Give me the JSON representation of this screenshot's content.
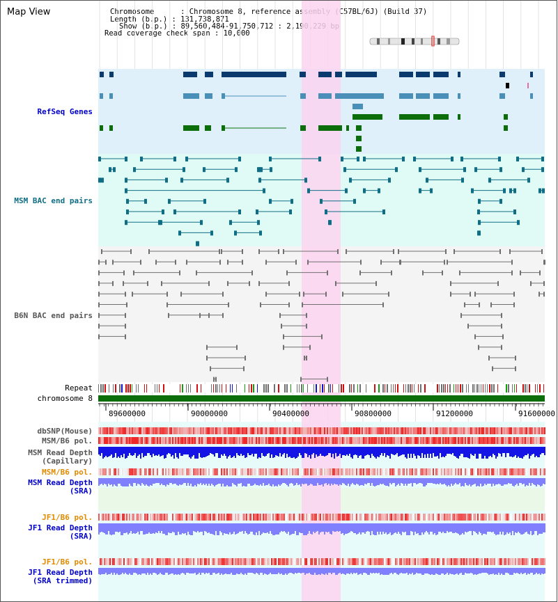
{
  "app": {
    "title": "Map View"
  },
  "info": {
    "chromosome_line": "Chromosome      : Chromosome 8, reference assembly (C57BL/6J) (Build 37)",
    "length_line": "Length (b.p.) : 131,738,871",
    "show_line": "Show (b.p.) : 89,560,484-91,750,712 : 2,190,229 bp",
    "coverage_line": "Read coverage check span : 10,000"
  },
  "tracks": {
    "refseq": "RefSeq Genes",
    "msm_bac": "MSM BAC end pairs",
    "b6n_bac": "B6N BAC end pairs",
    "repeat": "Repeat",
    "chromosome": "chromosome 8",
    "dbsnp": "dbSNP(Mouse)",
    "msm_b6_pol": "MSM/B6 pol.",
    "msm_read_depth_cap": "MSM Read Depth\n(Capillary)",
    "msm_b6_pol_2": "MSM/B6 pol.",
    "msm_read_depth_sra": "MSM Read Depth\n(SRA)",
    "jf1_b6_pol": "JF1/B6 pol.",
    "jf1_read_depth_sra": "JF1 Read Depth\n(SRA)",
    "jf1_b6_pol_2": "JF1/B6 pol.",
    "jf1_read_depth_trim": "JF1 Read Depth\n(SRA trimmed)"
  },
  "axis": {
    "ticks": [
      "89600000",
      "90000000",
      "90400000",
      "90800000",
      "91200000",
      "91600000"
    ]
  },
  "colors": {
    "refseq_bg": "#dff0fb",
    "msm_bac_bg": "#e0fbf6",
    "b6n_bac_bg": "#f4f4f4",
    "highlight": "#fbd4f0",
    "navy": "#0a3a6e",
    "steel": "#4a8fb8",
    "green": "#0b6e0b",
    "teal": "#0f6e85",
    "gray": "#707070",
    "chromosome": "#0b6e0b",
    "depth_dark": "#1414e6",
    "depth_light": "#8080ff",
    "pol_red": "#f03030",
    "orange_label": "#e08a00",
    "blue_label": "#0000c8",
    "teal_label": "#0f6e85"
  }
}
